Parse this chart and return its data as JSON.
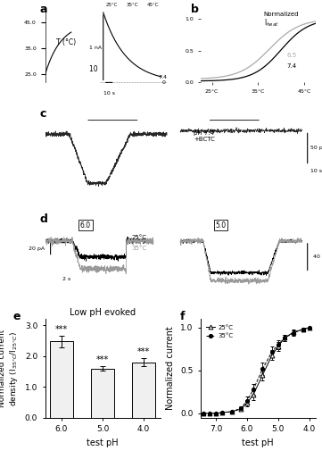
{
  "figsize": [
    3.61,
    5.14
  ],
  "dpi": 100,
  "panel_e": {
    "label": "e",
    "title": "Low pH evoked",
    "xlabel": "test pH",
    "ylabel": "Normalized current\ndensity (I₃₅°C/I₂₅°C)",
    "categories": [
      "6.0",
      "5.0",
      "4.0"
    ],
    "bar_values": [
      2.47,
      1.6,
      1.8
    ],
    "bar_errors": [
      0.18,
      0.07,
      0.12
    ],
    "bar_color": "#f0f0f0",
    "bar_edge_color": "#000000",
    "ylim": [
      0.0,
      3.2
    ],
    "yticks": [
      0.0,
      1.0,
      2.0,
      3.0
    ],
    "significance": [
      "***",
      "***",
      "***"
    ]
  },
  "panel_f": {
    "label": "f",
    "xlabel": "test pH",
    "ylabel": "Normalized current",
    "xlim": [
      7.5,
      3.8
    ],
    "ylim": [
      -0.05,
      1.1
    ],
    "yticks": [
      0.0,
      0.5,
      1.0
    ],
    "xticks": [
      7.0,
      6.0,
      5.0,
      4.0
    ],
    "legend_25": "25°C",
    "legend_35": "35°C",
    "x_25": [
      7.4,
      7.2,
      7.0,
      6.8,
      6.5,
      6.2,
      6.0,
      5.8,
      5.5,
      5.2,
      5.0,
      4.8,
      4.5,
      4.2,
      4.0
    ],
    "y_25": [
      0.0,
      0.0,
      0.0,
      0.01,
      0.02,
      0.05,
      0.12,
      0.22,
      0.45,
      0.68,
      0.78,
      0.88,
      0.95,
      0.98,
      1.0
    ],
    "err_25": [
      0.0,
      0.0,
      0.0,
      0.005,
      0.01,
      0.02,
      0.04,
      0.06,
      0.07,
      0.06,
      0.05,
      0.04,
      0.03,
      0.02,
      0.0
    ],
    "x_35": [
      7.4,
      7.2,
      7.0,
      6.8,
      6.5,
      6.2,
      6.0,
      5.8,
      5.5,
      5.2,
      5.0,
      4.8,
      4.5,
      4.2,
      4.0
    ],
    "y_35": [
      0.0,
      0.0,
      0.0,
      0.01,
      0.02,
      0.06,
      0.15,
      0.28,
      0.52,
      0.72,
      0.8,
      0.88,
      0.94,
      0.98,
      1.0
    ],
    "err_35": [
      0.0,
      0.0,
      0.0,
      0.005,
      0.01,
      0.025,
      0.045,
      0.065,
      0.07,
      0.06,
      0.05,
      0.04,
      0.03,
      0.02,
      0.0
    ]
  },
  "fontsize_label": 7,
  "fontsize_tick": 6.5,
  "fontsize_panel": 9,
  "fontsize_sig": 7,
  "fontsize_title": 7
}
